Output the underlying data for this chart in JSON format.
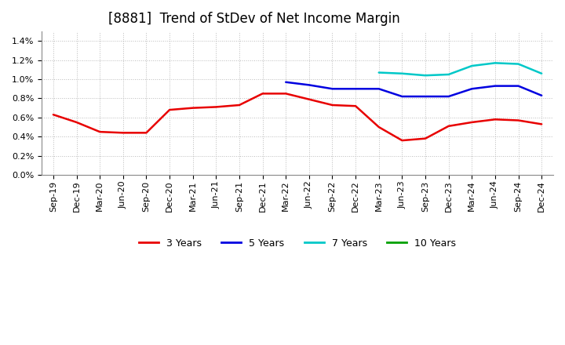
{
  "title": "[8881]  Trend of StDev of Net Income Margin",
  "x_labels": [
    "Sep-19",
    "Dec-19",
    "Mar-20",
    "Jun-20",
    "Sep-20",
    "Dec-20",
    "Mar-21",
    "Jun-21",
    "Sep-21",
    "Dec-21",
    "Mar-22",
    "Jun-22",
    "Sep-22",
    "Dec-22",
    "Mar-23",
    "Jun-23",
    "Sep-23",
    "Dec-23",
    "Mar-24",
    "Jun-24",
    "Sep-24",
    "Dec-24"
  ],
  "ylim": [
    0.0,
    0.015
  ],
  "yticks": [
    0.0,
    0.002,
    0.004,
    0.006,
    0.008,
    0.01,
    0.012,
    0.014
  ],
  "series": {
    "3 Years": {
      "color": "#e80000",
      "values": [
        0.0063,
        0.0055,
        0.0045,
        0.0044,
        0.0044,
        0.0068,
        0.007,
        0.0071,
        0.0073,
        0.0085,
        0.0085,
        0.0079,
        0.0073,
        0.0072,
        0.005,
        0.0036,
        0.0038,
        0.0051,
        0.0055,
        0.0058,
        0.0057,
        0.0053
      ]
    },
    "5 Years": {
      "color": "#0000e0",
      "values": [
        null,
        null,
        null,
        null,
        null,
        null,
        null,
        null,
        null,
        null,
        0.0097,
        0.0094,
        0.009,
        0.009,
        0.009,
        0.0082,
        0.0082,
        0.0082,
        0.009,
        0.0093,
        0.0093,
        0.0083
      ]
    },
    "7 Years": {
      "color": "#00c8c8",
      "values": [
        null,
        null,
        null,
        null,
        null,
        null,
        null,
        null,
        null,
        null,
        null,
        null,
        null,
        null,
        0.0107,
        0.0106,
        0.0104,
        0.0105,
        0.0114,
        0.0117,
        0.0116,
        0.0106
      ]
    },
    "10 Years": {
      "color": "#00a000",
      "values": [
        null,
        null,
        null,
        null,
        null,
        null,
        null,
        null,
        null,
        null,
        null,
        null,
        null,
        null,
        null,
        null,
        null,
        null,
        null,
        null,
        null,
        null
      ]
    }
  },
  "background_color": "#ffffff",
  "plot_bg_color": "#ffffff",
  "grid_color": "#aaaaaa",
  "title_fontsize": 12,
  "legend_fontsize": 9,
  "tick_fontsize": 8
}
